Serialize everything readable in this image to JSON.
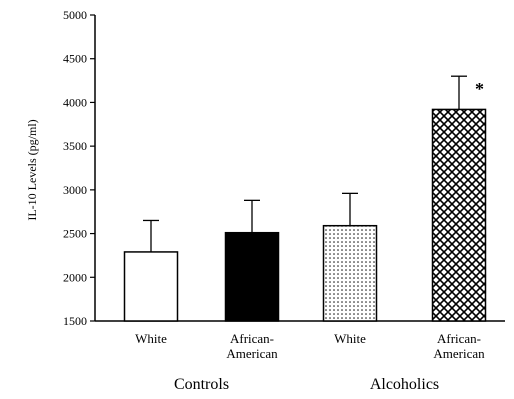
{
  "chart_data": {
    "type": "bar",
    "title": "",
    "ylabel": "IL-10 Levels (pg/ml)",
    "xlabel": "",
    "ylim": [
      1500,
      5000
    ],
    "yticks": [
      1500,
      2000,
      2500,
      3000,
      3500,
      4000,
      4500,
      5000
    ],
    "grid": false,
    "categories": [
      [
        "White"
      ],
      [
        "African-",
        "American"
      ],
      [
        "White"
      ],
      [
        "African-",
        "American"
      ]
    ],
    "groups": [
      {
        "label": "Controls",
        "category_indices": [
          0,
          1
        ]
      },
      {
        "label": "Alcoholics",
        "category_indices": [
          2,
          3
        ]
      }
    ],
    "values": [
      2290,
      2510,
      2590,
      3920
    ],
    "error": [
      360,
      370,
      370,
      380
    ],
    "fills": [
      "white",
      "black",
      "dots",
      "crosshatch"
    ],
    "annotations": [
      {
        "category_index": 3,
        "text": "*"
      }
    ]
  }
}
